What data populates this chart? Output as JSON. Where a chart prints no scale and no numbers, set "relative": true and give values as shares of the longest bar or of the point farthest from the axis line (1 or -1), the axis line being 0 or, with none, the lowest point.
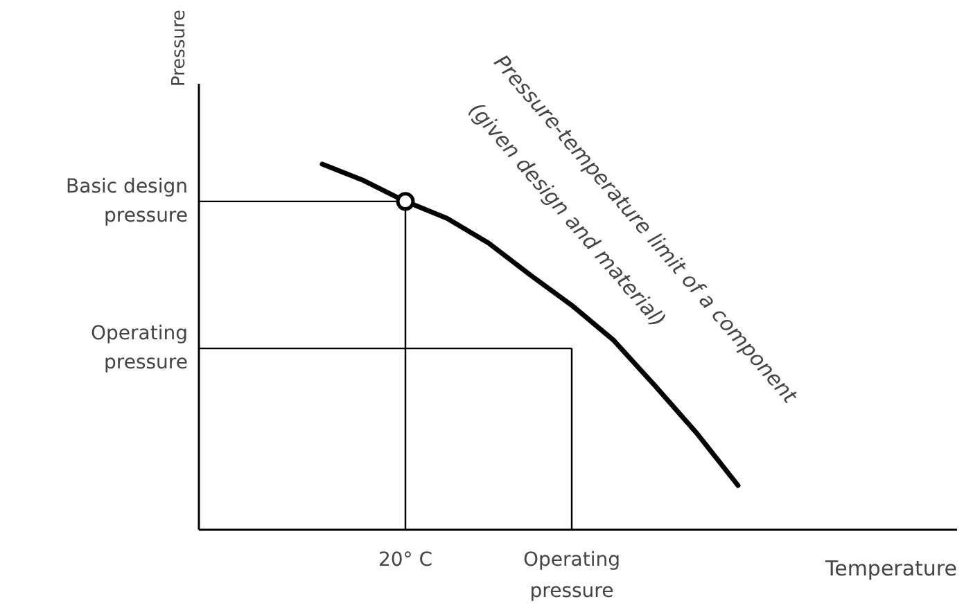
{
  "chart_data": {
    "type": "line",
    "relative": true,
    "xlabel": "Temperature",
    "categories": [
      null,
      null,
      "20° C",
      null,
      null,
      null,
      "Operating pressure",
      null,
      null,
      null,
      null
    ],
    "series": [
      {
        "color": "#000000",
        "marker": "none",
        "values": [
          1.0,
          0.955,
          0.898,
          0.852,
          0.784,
          0.697,
          0.614,
          0.519,
          0.394,
          0.265,
          0.121
        ]
      },
      {
        "type": "scatter",
        "color": "#000000",
        "marker": "circle",
        "x": [
          "20° C"
        ],
        "values": [
          0.898
        ]
      }
    ],
    "ref_lines": [
      {
        "axis": "y",
        "value": 0.898,
        "label": "Basic design pressure"
      },
      {
        "axis": "y",
        "value": 0.496,
        "label": "Operating pressure"
      },
      {
        "axis": "x",
        "value": "20° C"
      },
      {
        "axis": "x",
        "value": "Operating pressure"
      }
    ],
    "annotations": [
      "Pressure-temperature limit of a component",
      "(given design and material)",
      "Pressure"
    ],
    "grid": false
  }
}
